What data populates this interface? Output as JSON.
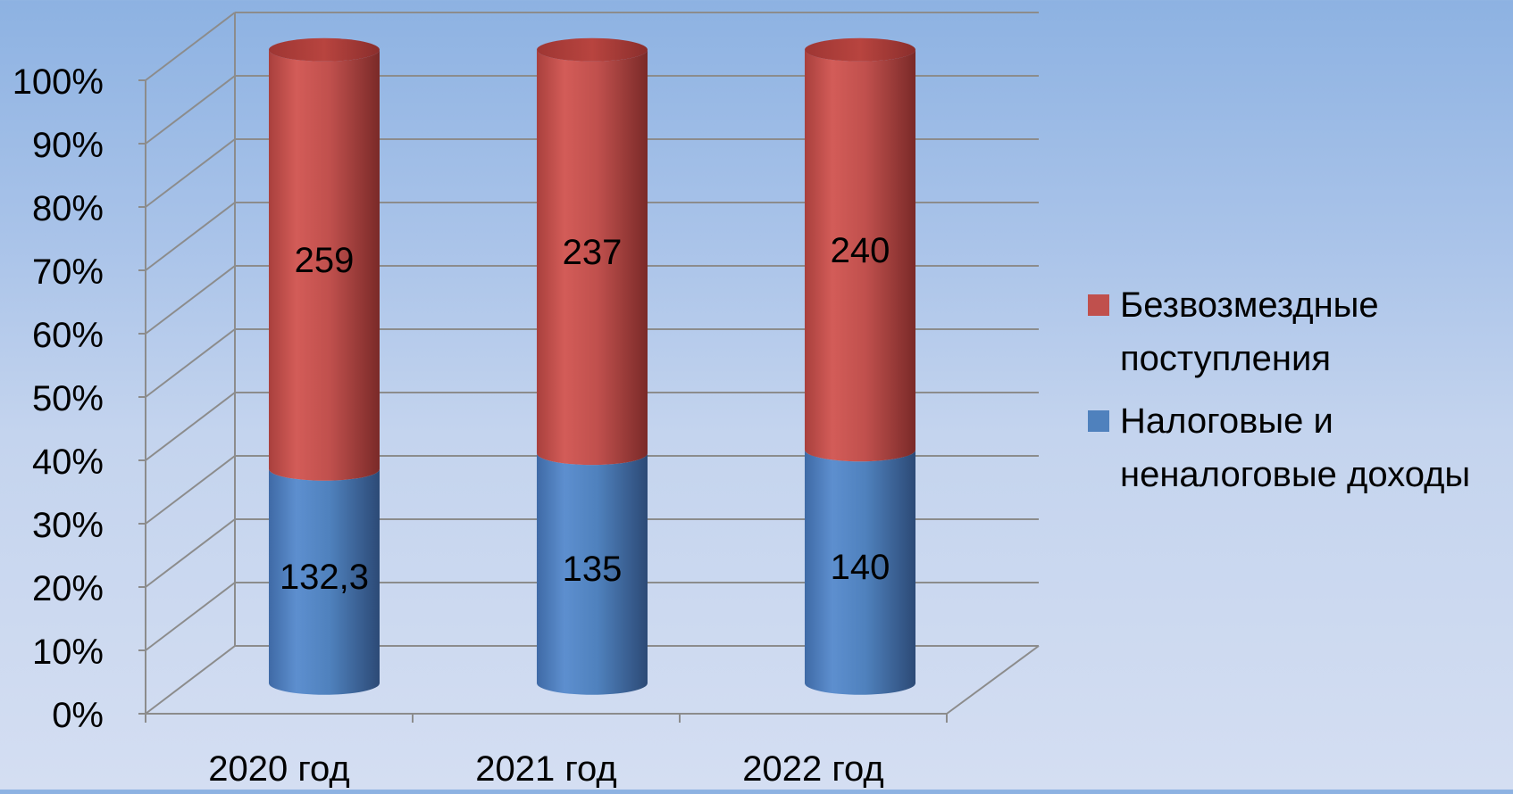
{
  "chart_data": {
    "type": "bar",
    "stacked": "percent",
    "style": "3d-cylinder",
    "categories": [
      "2020 год",
      "2021 год",
      "2022 год"
    ],
    "series": [
      {
        "name": "Налоговые и неналоговые доходы",
        "values": [
          132.3,
          135,
          140
        ],
        "labels": [
          "132,3",
          "135",
          "140"
        ],
        "color": "#4f81bd"
      },
      {
        "name": "Безвозмездные поступления",
        "values": [
          259,
          237,
          240
        ],
        "labels": [
          "259",
          "237",
          "240"
        ],
        "color": "#c0504d"
      }
    ],
    "y_ticks": [
      "0%",
      "10%",
      "20%",
      "30%",
      "40%",
      "50%",
      "60%",
      "70%",
      "80%",
      "90%",
      "100%"
    ],
    "ylim": [
      0,
      100
    ],
    "grid": true,
    "legend_position": "right",
    "legend_order": [
      "Безвозмездные поступления",
      "Налоговые и неналоговые доходы"
    ]
  },
  "legend": {
    "items": [
      {
        "label": "Безвозмездные поступления",
        "color": "#c0504d"
      },
      {
        "label": "Налоговые и неналоговые доходы",
        "color": "#4f81bd"
      }
    ]
  }
}
